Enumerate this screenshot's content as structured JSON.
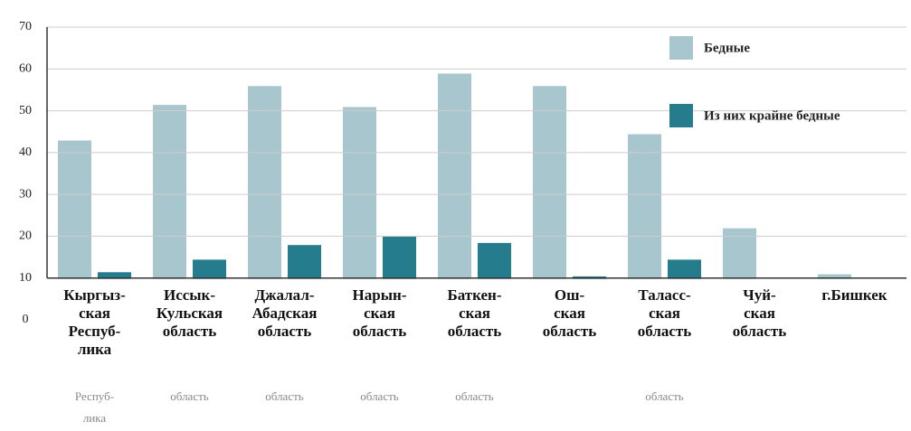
{
  "chart_data": {
    "type": "bar",
    "categories": [
      "Кыргыз-\nская\nРеспуб-\nлика",
      "Иссык-\nКульская\nобласть",
      "Джалал-\nАбадская\nобласть",
      "Нарын-\nская\nобласть",
      "Баткен-\nская\nобласть",
      "Ош-\nская\nобласть",
      "Таласс-\nская\nобласть",
      "Чуй-\nская\nобласть",
      "г.Бишкек"
    ],
    "ghost_labels": [
      "Респуб-\nлика",
      "область",
      "область",
      "область",
      "область",
      null,
      "область",
      null,
      null
    ],
    "series": [
      {
        "name": "Бедные",
        "color": "#a8c6cd",
        "values": [
          43,
          51.5,
          56,
          51,
          59,
          56,
          44.5,
          22,
          11
        ]
      },
      {
        "name": "Из них крайне бедные",
        "color": "#247c8c",
        "values": [
          11.5,
          14.5,
          18,
          20,
          18.5,
          10.5,
          14.5,
          null,
          null
        ]
      }
    ],
    "ylim": [
      0,
      70
    ],
    "yticks": [
      0,
      10,
      20,
      30,
      40,
      50,
      60,
      70
    ],
    "grid": true,
    "legend": "top-right"
  }
}
